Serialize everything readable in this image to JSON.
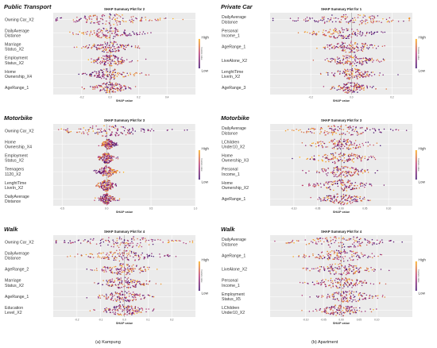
{
  "figure": {
    "caption_left": "(a) Kampung",
    "caption_right": "(b) Apartment"
  },
  "legend": {
    "high": "High",
    "low": "Low",
    "axis_title": "Feature value"
  },
  "chart_data": [
    {
      "type": "scatter",
      "panel_label": "Public Transport",
      "title": "SHAP Summary Plot for 2",
      "xlabel": "SHAP value",
      "xlim": [
        -0.4,
        0.6
      ],
      "xticks": [
        "-0.2",
        "0.0",
        "0.2",
        "0.4"
      ],
      "features": [
        {
          "name": "Owning Car_X2",
          "spread": 0.38,
          "center": 0.0,
          "bias": "high-right"
        },
        {
          "name": "DailyAverage\nDistance",
          "spread": 0.22,
          "center": 0.0,
          "bias": "low-right"
        },
        {
          "name": "Marriage\nStatus_X2",
          "spread": 0.18,
          "center": 0.0,
          "bias": "mixed"
        },
        {
          "name": "Employment\nStatus_X2",
          "spread": 0.16,
          "center": 0.0,
          "bias": "mixed"
        },
        {
          "name": "Home\nOwnership_X4",
          "spread": 0.18,
          "center": 0.0,
          "bias": "high-right"
        },
        {
          "name": "AgeRange_1",
          "spread": 0.15,
          "center": 0.0,
          "bias": "mixed"
        }
      ]
    },
    {
      "type": "scatter",
      "panel_label": "Private Car",
      "title": "SHAP Summary Plot for 1",
      "xlabel": "SHAP value",
      "xlim": [
        -0.4,
        0.3
      ],
      "xticks": [
        "-0.2",
        "0.0",
        "0.2"
      ],
      "features": [
        {
          "name": "DailyAverage\nDistance",
          "spread": 0.3,
          "center": 0.0,
          "bias": "high-right"
        },
        {
          "name": "Personal\nIncome_1",
          "spread": 0.18,
          "center": -0.04,
          "bias": "low-right"
        },
        {
          "name": "AgeRange_1",
          "spread": 0.16,
          "center": 0.0,
          "bias": "mixed"
        },
        {
          "name": "LiveAlone_X2",
          "spread": 0.15,
          "center": 0.0,
          "bias": "mixed"
        },
        {
          "name": "LenghtTime\nLiveIn_X2",
          "spread": 0.13,
          "center": 0.0,
          "bias": "mixed"
        },
        {
          "name": "AgeRange_3",
          "spread": 0.1,
          "center": 0.0,
          "bias": "mixed"
        }
      ]
    },
    {
      "type": "scatter",
      "panel_label": "Motorbike",
      "title": "SHAP Summary Plot for 3",
      "xlabel": "SHAP value",
      "xlim": [
        -0.6,
        1.0
      ],
      "xticks": [
        "-0.5",
        "0.0",
        "0.5",
        "1.0"
      ],
      "features": [
        {
          "name": "Owning Car_X2",
          "spread": 0.6,
          "center": 0.0,
          "bias": "low-right"
        },
        {
          "name": "Home\nOwnership_X4",
          "spread": 0.08,
          "center": 0.02,
          "bias": "low-right"
        },
        {
          "name": "Employment\nStatus_X2",
          "spread": 0.1,
          "center": 0.0,
          "bias": "mixed"
        },
        {
          "name": "Teenagers\n1120_X2",
          "spread": 0.12,
          "center": 0.0,
          "bias": "high-right"
        },
        {
          "name": "LenghtTime\nLiveIn_X2",
          "spread": 0.12,
          "center": 0.0,
          "bias": "mixed"
        },
        {
          "name": "DailyAverage\nDistance",
          "spread": 0.1,
          "center": 0.0,
          "bias": "mixed"
        }
      ]
    },
    {
      "type": "scatter",
      "panel_label": "Motorbike",
      "title": "SHAP Summary Plot for 3",
      "xlabel": "SHAP value",
      "xlim": [
        -0.15,
        0.15
      ],
      "xticks": [
        "-0.10",
        "-0.05",
        "0.00",
        "0.05",
        "0.10"
      ],
      "features": [
        {
          "name": "DailyAverage\nDistance",
          "spread": 0.1,
          "center": 0.0,
          "bias": "low-right"
        },
        {
          "name": "LChildren\nUnder10_X2",
          "spread": 0.08,
          "center": 0.0,
          "bias": "mixed"
        },
        {
          "name": "Home\nOwnership_X3",
          "spread": 0.08,
          "center": 0.0,
          "bias": "mixed"
        },
        {
          "name": "Personal\nIncome_1",
          "spread": 0.07,
          "center": 0.0,
          "bias": "mixed"
        },
        {
          "name": "Home\nOwnership_X2",
          "spread": 0.07,
          "center": 0.0,
          "bias": "mixed"
        },
        {
          "name": "AgeRange_1",
          "spread": 0.06,
          "center": 0.0,
          "bias": "mixed"
        }
      ]
    },
    {
      "type": "scatter",
      "panel_label": "Walk",
      "title": "SHAP Summary Plot for 4",
      "xlabel": "SHAP value",
      "xlim": [
        -0.3,
        0.3
      ],
      "xticks": [
        "-0.2",
        "-0.1",
        "0.0",
        "0.1",
        "0.2"
      ],
      "features": [
        {
          "name": "Owning Car_X2",
          "spread": 0.26,
          "center": 0.0,
          "bias": "high-right"
        },
        {
          "name": "DailyAverage\nDistance",
          "spread": 0.18,
          "center": 0.0,
          "bias": "low-right"
        },
        {
          "name": "AgeRange_2",
          "spread": 0.14,
          "center": 0.0,
          "bias": "mixed"
        },
        {
          "name": "Marriage\nStatus_X2",
          "spread": 0.13,
          "center": 0.0,
          "bias": "mixed"
        },
        {
          "name": "AgeRange_1",
          "spread": 0.12,
          "center": 0.0,
          "bias": "mixed"
        },
        {
          "name": "Education\nLevel_X2",
          "spread": 0.11,
          "center": 0.0,
          "bias": "mixed"
        }
      ]
    },
    {
      "type": "scatter",
      "panel_label": "Walk",
      "title": "SHAP Summary Plot for 4",
      "xlabel": "SHAP value",
      "xlim": [
        -0.2,
        0.2
      ],
      "xticks": [
        "-0.10",
        "-0.05",
        "0.00",
        "0.05",
        "0.10"
      ],
      "features": [
        {
          "name": "DailyAverage\nDistance",
          "spread": 0.16,
          "center": 0.0,
          "bias": "low-right"
        },
        {
          "name": "AgeRange_1",
          "spread": 0.12,
          "center": 0.0,
          "bias": "mixed"
        },
        {
          "name": "LiveAlone_X2",
          "spread": 0.11,
          "center": 0.0,
          "bias": "mixed"
        },
        {
          "name": "Personal\nIncome_1",
          "spread": 0.1,
          "center": 0.0,
          "bias": "mixed"
        },
        {
          "name": "Employment\nStatus_X5",
          "spread": 0.09,
          "center": 0.02,
          "bias": "mixed"
        },
        {
          "name": "LChildren\nUnder10_X2",
          "spread": 0.08,
          "center": 0.0,
          "bias": "mixed"
        }
      ]
    }
  ],
  "colors": {
    "plot_bg": "#ebebeb",
    "grid": "#ffffff",
    "zero_line": "#8a8a8a",
    "text": "#333333",
    "low": "#3b0f70",
    "mid": "#b73779",
    "high": "#fcae12"
  }
}
